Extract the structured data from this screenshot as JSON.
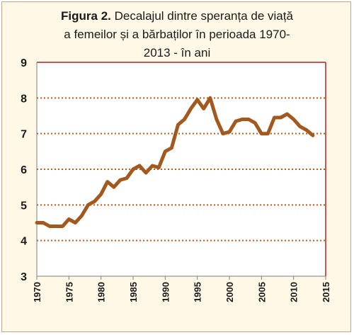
{
  "chart_data": {
    "type": "line",
    "title_bold": "Figura 2.",
    "title_line1": "Decalajul dintre speranța de viață",
    "title_line2": "a femeilor și a bărbaților în perioada 1970-",
    "title_line3": "2013  - în ani",
    "xlabel": "",
    "ylabel": "",
    "xlim": [
      1970,
      2015
    ],
    "ylim": [
      3,
      9
    ],
    "x_ticks": [
      1970,
      1975,
      1980,
      1985,
      1990,
      1995,
      2000,
      2005,
      2010,
      2015
    ],
    "y_ticks": [
      3,
      4,
      5,
      6,
      7,
      8,
      9
    ],
    "grid": "horizontal dotted",
    "legend": "none",
    "colors": {
      "line": "#a3581e",
      "grid": "#c55a11",
      "frame": "#b22222",
      "background": "#fff8e6"
    },
    "series": [
      {
        "x": [
          1970,
          1971,
          1972,
          1973,
          1974,
          1975,
          1976,
          1977,
          1978,
          1979,
          1980,
          1981,
          1982,
          1983,
          1984,
          1985,
          1986,
          1987,
          1988,
          1989,
          1990,
          1991,
          1992,
          1993,
          1994,
          1995,
          1996,
          1997,
          1998,
          1999,
          2000,
          2001,
          2002,
          2003,
          2004,
          2005,
          2006,
          2007,
          2008,
          2009,
          2010,
          2011,
          2012,
          2013
        ],
        "values": [
          4.5,
          4.5,
          4.4,
          4.4,
          4.4,
          4.6,
          4.5,
          4.7,
          5.0,
          5.1,
          5.3,
          5.65,
          5.5,
          5.7,
          5.75,
          6.0,
          6.1,
          5.9,
          6.1,
          6.05,
          6.5,
          6.6,
          7.25,
          7.4,
          7.7,
          7.95,
          7.7,
          8.0,
          7.4,
          7.0,
          7.05,
          7.35,
          7.4,
          7.4,
          7.3,
          7.0,
          7.0,
          7.45,
          7.45,
          7.55,
          7.4,
          7.2,
          7.1,
          6.95
        ]
      }
    ]
  }
}
